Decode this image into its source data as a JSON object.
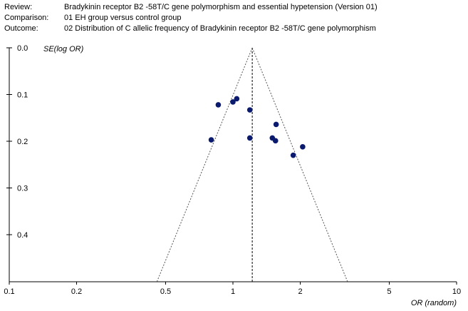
{
  "header": {
    "rows": [
      {
        "key": "Review:",
        "value": "Bradykinin receptor B2 -58T/C gene polymorphism and essential hypetension (Version 01)"
      },
      {
        "key": "Comparison:",
        "value": "01 EH group versus control group"
      },
      {
        "key": "Outcome:",
        "value": "02 Distribution of C allelic frequency of  Bradykinin receptor B2 -58T/C gene polymorphism"
      }
    ]
  },
  "chart_data": {
    "type": "scatter",
    "title": "",
    "xlabel": "OR (random)",
    "ylabel": "SE(log OR)",
    "xscale": "log",
    "xlim": [
      0.1,
      10
    ],
    "xticks": [
      0.1,
      0.2,
      0.5,
      1,
      2,
      5,
      10
    ],
    "xtick_labels": [
      "0.1",
      "0.2",
      "0.5",
      "1",
      "2",
      "5",
      "10"
    ],
    "ylim": [
      0.0,
      0.5
    ],
    "yinverted": true,
    "yticks": [
      0.0,
      0.1,
      0.2,
      0.3,
      0.4
    ],
    "ytick_labels": [
      "0.0",
      "0.1",
      "0.2",
      "0.3",
      "0.4"
    ],
    "grid": false,
    "pooled_or": 1.22,
    "funnel": "pseudo 95% confidence limits (dashed)",
    "point_color": "#0a1a6e",
    "points": [
      {
        "x": 0.8,
        "y": 0.197
      },
      {
        "x": 0.86,
        "y": 0.122
      },
      {
        "x": 1.0,
        "y": 0.116
      },
      {
        "x": 1.04,
        "y": 0.109
      },
      {
        "x": 1.19,
        "y": 0.133
      },
      {
        "x": 1.19,
        "y": 0.193
      },
      {
        "x": 1.5,
        "y": 0.193
      },
      {
        "x": 1.55,
        "y": 0.199
      },
      {
        "x": 1.56,
        "y": 0.164
      },
      {
        "x": 2.05,
        "y": 0.212
      },
      {
        "x": 1.86,
        "y": 0.23
      }
    ]
  }
}
